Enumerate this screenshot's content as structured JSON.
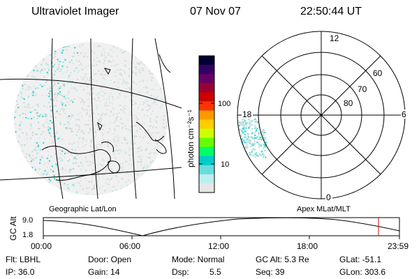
{
  "header": {
    "instrument": "Ultraviolet Imager",
    "date": "07 Nov 07",
    "time": "22:50:44 UT"
  },
  "left_panel": {
    "caption": "Geographic Lat/Lon"
  },
  "right_panel": {
    "caption": "Apex MLat/MLT",
    "mlt_labels": [
      "12",
      "18",
      "6",
      "0"
    ],
    "mlat_labels": [
      "60",
      "70",
      "80"
    ]
  },
  "colorbar": {
    "unit_label": "photon cm⁻²s⁻¹",
    "tick_labels": [
      "100",
      "10"
    ],
    "scale": "log",
    "colors": [
      "#000033",
      "#330066",
      "#660066",
      "#990033",
      "#cc0000",
      "#ff3300",
      "#ff9900",
      "#ffcc00",
      "#ccff00",
      "#66ff00",
      "#00ff66",
      "#00cccc",
      "#66dddd",
      "#bbeeee",
      "#e6e6e6"
    ]
  },
  "altitude_plot": {
    "ylabel": "GC Alt",
    "y_ticks": [
      "9.0",
      "1.8"
    ],
    "x_ticks": [
      "00:00",
      "06:00",
      "12:00",
      "18:00",
      "23:59"
    ]
  },
  "info": {
    "row1": {
      "flt": "Flt: LBHL",
      "door": "Door: Open",
      "mode": "Mode: Normal",
      "gcalt": "GC Alt: 5.3 Re",
      "glat": "GLat: -51.1"
    },
    "row2": {
      "ip": "IP: 36.0",
      "gain": "Gain: 14",
      "dsp_label": "Dsp:",
      "dsp_value": "5.5",
      "seq": "Seq: 39",
      "glon": "GLon: 303.6"
    }
  },
  "colors": {
    "emission": "#3fd6d6",
    "marker": "#cc0000"
  }
}
